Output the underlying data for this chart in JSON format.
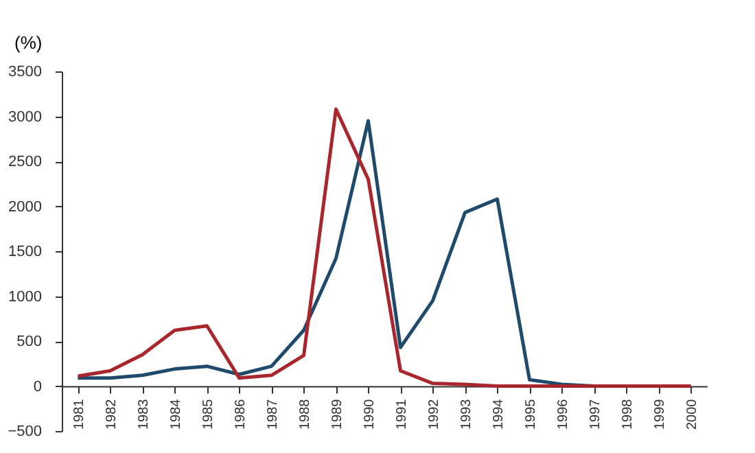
{
  "chart_data": {
    "type": "line",
    "ylabel": "(%)",
    "categories": [
      "1981",
      "1982",
      "1983",
      "1984",
      "1985",
      "1986",
      "1987",
      "1988",
      "1989",
      "1990",
      "1991",
      "1992",
      "1993",
      "1994",
      "1995",
      "1996",
      "1997",
      "1998",
      "1999",
      "2000"
    ],
    "series": [
      {
        "color": "#1f4a6b",
        "values": [
          90,
          90,
          120,
          190,
          220,
          130,
          220,
          620,
          1420,
          2950,
          430,
          950,
          1930,
          2080,
          70,
          20,
          0,
          0,
          0,
          0
        ]
      },
      {
        "color": "#a8262c",
        "values": [
          110,
          170,
          350,
          620,
          670,
          90,
          120,
          340,
          3080,
          2300,
          170,
          30,
          20,
          0,
          0,
          0,
          0,
          0,
          0,
          0
        ]
      }
    ],
    "ylim": [
      -500,
      3500
    ],
    "yticks": [
      -500,
      0,
      500,
      1000,
      1500,
      2000,
      2500,
      3000,
      3500
    ],
    "grid": false,
    "line_style": "solid",
    "marker": "none"
  }
}
